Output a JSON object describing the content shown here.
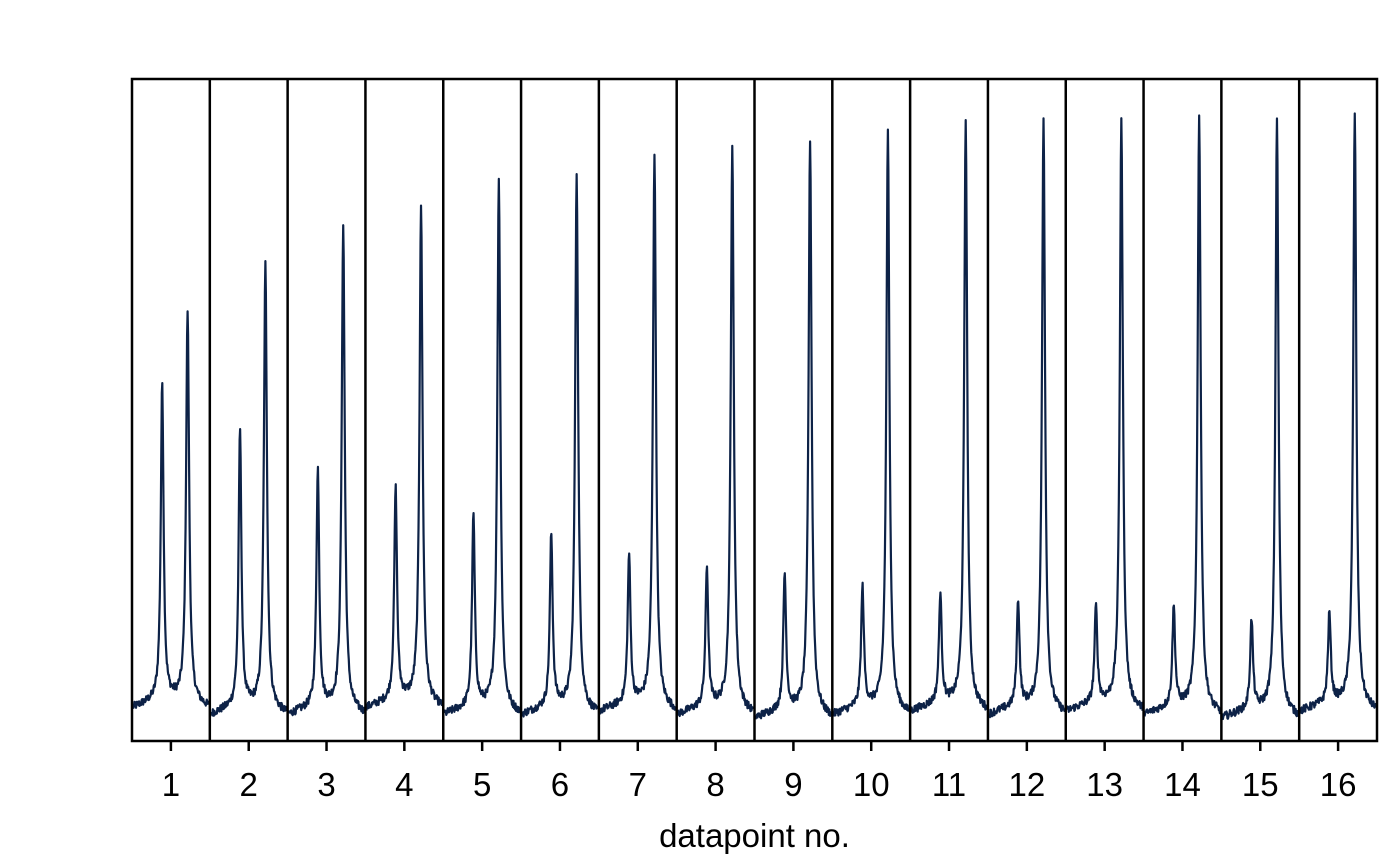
{
  "chart_data": {
    "type": "line",
    "title": "",
    "xlabel": "datapoint no.",
    "ylabel": "",
    "categories": [
      "1",
      "2",
      "3",
      "4",
      "5",
      "6",
      "7",
      "8",
      "9",
      "10",
      "11",
      "12",
      "13",
      "14",
      "15",
      "16"
    ],
    "ylim": [
      0,
      1
    ],
    "grid": false,
    "legend": "none",
    "series": [
      {
        "color": "#0d2247",
        "baseline": [
          0.05,
          0.04,
          0.04,
          0.05,
          0.04,
          0.04,
          0.045,
          0.04,
          0.035,
          0.04,
          0.045,
          0.04,
          0.045,
          0.04,
          0.035,
          0.045
        ],
        "peak1_height": [
          0.53,
          0.46,
          0.4,
          0.37,
          0.33,
          0.3,
          0.27,
          0.25,
          0.24,
          0.22,
          0.21,
          0.2,
          0.19,
          0.19,
          0.17,
          0.18
        ],
        "peak2_height": [
          0.64,
          0.71,
          0.77,
          0.8,
          0.84,
          0.85,
          0.88,
          0.89,
          0.9,
          0.91,
          0.93,
          0.93,
          0.93,
          0.94,
          0.93,
          0.94
        ]
      }
    ]
  }
}
